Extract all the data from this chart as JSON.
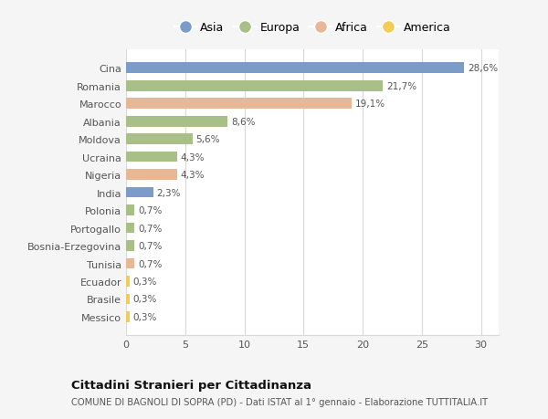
{
  "countries": [
    "Cina",
    "Romania",
    "Marocco",
    "Albania",
    "Moldova",
    "Ucraina",
    "Nigeria",
    "India",
    "Polonia",
    "Portogallo",
    "Bosnia-Erzegovina",
    "Tunisia",
    "Ecuador",
    "Brasile",
    "Messico"
  ],
  "values": [
    28.6,
    21.7,
    19.1,
    8.6,
    5.6,
    4.3,
    4.3,
    2.3,
    0.7,
    0.7,
    0.7,
    0.7,
    0.3,
    0.3,
    0.3
  ],
  "labels": [
    "28,6%",
    "21,7%",
    "19,1%",
    "8,6%",
    "5,6%",
    "4,3%",
    "4,3%",
    "2,3%",
    "0,7%",
    "0,7%",
    "0,7%",
    "0,7%",
    "0,3%",
    "0,3%",
    "0,3%"
  ],
  "continents": [
    "Asia",
    "Europa",
    "Africa",
    "Europa",
    "Europa",
    "Europa",
    "Africa",
    "Asia",
    "Europa",
    "Europa",
    "Europa",
    "Africa",
    "America",
    "America",
    "America"
  ],
  "colors": {
    "Asia": "#7b9cc9",
    "Europa": "#a8bf87",
    "Africa": "#e8b896",
    "America": "#f2cc5a"
  },
  "title": "Cittadini Stranieri per Cittadinanza",
  "subtitle": "COMUNE DI BAGNOLI DI SOPRA (PD) - Dati ISTAT al 1° gennaio - Elaborazione TUTTITALIA.IT",
  "xlim": [
    0,
    31.5
  ],
  "xticks": [
    0,
    5,
    10,
    15,
    20,
    25,
    30
  ],
  "background_color": "#f5f5f5",
  "bar_background": "#ffffff",
  "grid_color": "#d8d8d8",
  "legend_items": [
    "Asia",
    "Europa",
    "Africa",
    "America"
  ]
}
